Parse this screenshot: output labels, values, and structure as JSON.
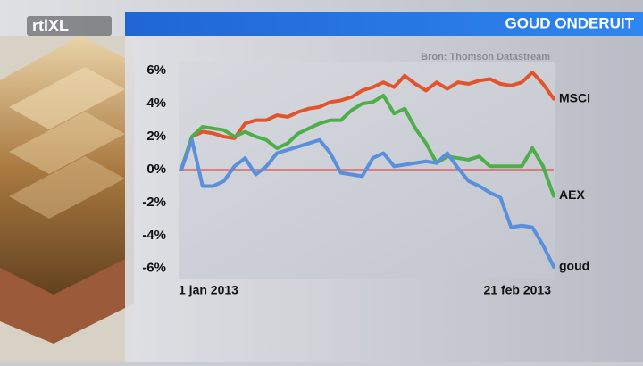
{
  "chart_data": {
    "type": "line",
    "title": "GOUD ONDERUIT",
    "source": "Bron: Thomson Datastream",
    "logo": "rtlXL",
    "categories": [
      "1 jan 2013",
      null,
      null,
      null,
      null,
      null,
      null,
      null,
      null,
      null,
      null,
      null,
      null,
      null,
      null,
      null,
      null,
      null,
      null,
      null,
      null,
      null,
      null,
      null,
      null,
      null,
      null,
      null,
      null,
      null,
      null,
      null,
      null,
      null,
      null,
      "21 feb 2013"
    ],
    "series": [
      {
        "name": "MSCI",
        "color": "#e2552c",
        "values": [
          0,
          2.0,
          2.3,
          2.2,
          2.0,
          1.9,
          2.8,
          3.0,
          3.0,
          3.3,
          3.2,
          3.5,
          3.7,
          3.8,
          4.1,
          4.2,
          4.4,
          4.8,
          5.0,
          5.3,
          5.0,
          5.7,
          5.2,
          4.8,
          5.3,
          4.9,
          5.3,
          5.2,
          5.4,
          5.5,
          5.2,
          5.1,
          5.3,
          5.9,
          5.2,
          4.3
        ]
      },
      {
        "name": "AEX",
        "color": "#4eae4a",
        "values": [
          0,
          2.0,
          2.6,
          2.5,
          2.4,
          2.0,
          2.3,
          2.0,
          1.8,
          1.3,
          1.6,
          2.2,
          2.5,
          2.8,
          3.0,
          3.0,
          3.6,
          4.0,
          4.1,
          4.5,
          3.4,
          3.7,
          2.5,
          1.6,
          0.4,
          0.8,
          0.7,
          0.6,
          0.8,
          0.2,
          0.2,
          0.2,
          0.2,
          1.3,
          0.2,
          -1.6
        ]
      },
      {
        "name": "goud",
        "color": "#5a8fdc",
        "values": [
          0,
          1.8,
          -1.0,
          -1.0,
          -0.7,
          0.2,
          0.7,
          -0.3,
          0.2,
          1.0,
          1.2,
          1.4,
          1.6,
          1.8,
          1.0,
          -0.2,
          -0.3,
          -0.4,
          0.7,
          1.0,
          0.2,
          0.3,
          0.4,
          0.5,
          0.4,
          1.0,
          0.1,
          -0.7,
          -1.0,
          -1.4,
          -1.7,
          -3.5,
          -3.4,
          -3.5,
          -4.6,
          -5.9
        ]
      }
    ],
    "ylim": [
      -6.5,
      6.5
    ],
    "yticks": [
      {
        "value": -6,
        "label": "-6%"
      },
      {
        "value": -4,
        "label": "-4%"
      },
      {
        "value": -2,
        "label": "-2%"
      },
      {
        "value": 0,
        "label": "0%"
      },
      {
        "value": 2,
        "label": "2%"
      },
      {
        "value": 4,
        "label": "4%"
      },
      {
        "value": 6,
        "label": "6%"
      }
    ],
    "zero_line_color": "#e03030"
  }
}
